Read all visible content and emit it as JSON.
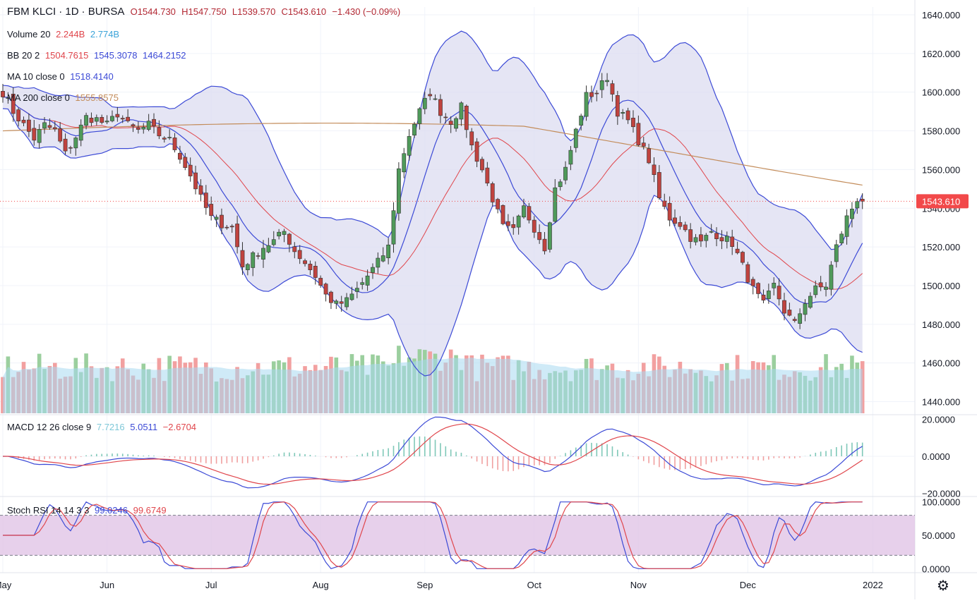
{
  "header": {
    "symbol": "FBM KLCI",
    "interval": "1D",
    "exchange": "BURSA",
    "open": "O1544.730",
    "high": "H1547.750",
    "low": "L1539.570",
    "close": "C1543.610",
    "change": "−1.430 (−0.09%)"
  },
  "legends": {
    "volume": {
      "label": "Volume 20",
      "v1": "2.244B",
      "v2": "2.774B"
    },
    "bb": {
      "label": "BB 20 2",
      "v1": "1504.7615",
      "v2": "1545.3078",
      "v3": "1464.2152"
    },
    "ma10": {
      "label": "MA 10 close 0",
      "v1": "1518.4140"
    },
    "ma200": {
      "label": "MA 200 close 0",
      "v1": "1555.8575"
    },
    "macd": {
      "label": "MACD 12 26 close 9",
      "v1": "7.7216",
      "v2": "5.0511",
      "v3": "−2.6704"
    },
    "stoch": {
      "label": "Stoch RSI 14 14 3 3",
      "v1": "99.0246",
      "v2": "99.6749"
    }
  },
  "colors": {
    "up": "#4f9a5a",
    "down": "#c0433f",
    "bb": "#3c4ad6",
    "bb_fill": "#dcdcf0",
    "ma10": "#e0464c",
    "ma200": "#c38c5a",
    "vol_up": "#9bcf9e",
    "vol_down": "#f2a0a0",
    "vol_ma": "#a8d8f0",
    "macd": "#3c4ad6",
    "signal": "#e0464c",
    "stoch_k": "#3c4ad6",
    "stoch_d": "#e0464c",
    "stoch_band": "#e1c4e6",
    "price_tag": "#f2494a"
  },
  "chart_data": {
    "type": "candlestick",
    "price_axis": {
      "ticks": [
        "1640.000",
        "1620.000",
        "1600.000",
        "1580.000",
        "1560.000",
        "1540.000",
        "1520.000",
        "1500.000",
        "1480.000",
        "1460.000",
        "1440.000"
      ],
      "range": [
        1434,
        1644
      ]
    },
    "last_price_label": "1543.610",
    "last_price": 1543.61,
    "macd_axis": {
      "ticks": [
        "20.0000",
        "0.0000",
        "−20.0000"
      ],
      "range": [
        -21,
        21
      ]
    },
    "stoch_axis": {
      "ticks": [
        "100.0000",
        "50.0000",
        "0.0000"
      ],
      "range": [
        -6,
        106
      ],
      "bands": [
        20,
        80
      ]
    },
    "time_axis": [
      {
        "label": "May",
        "x": 0
      },
      {
        "label": "Jun",
        "x": 20
      },
      {
        "label": "Jul",
        "x": 40
      },
      {
        "label": "Aug",
        "x": 61
      },
      {
        "label": "Sep",
        "x": 81
      },
      {
        "label": "Oct",
        "x": 102
      },
      {
        "label": "Nov",
        "x": 122
      },
      {
        "label": "Dec",
        "x": 143
      },
      {
        "label": "2022",
        "x": 167
      }
    ],
    "close_anchors": [
      [
        0,
        1600
      ],
      [
        2,
        1590
      ],
      [
        4,
        1583
      ],
      [
        6,
        1576
      ],
      [
        8,
        1583
      ],
      [
        10,
        1580
      ],
      [
        12,
        1568
      ],
      [
        14,
        1577
      ],
      [
        16,
        1587
      ],
      [
        18,
        1586
      ],
      [
        20,
        1583
      ],
      [
        22,
        1589
      ],
      [
        24,
        1583
      ],
      [
        26,
        1580
      ],
      [
        28,
        1583
      ],
      [
        30,
        1578
      ],
      [
        32,
        1575
      ],
      [
        34,
        1567
      ],
      [
        36,
        1557
      ],
      [
        38,
        1545
      ],
      [
        40,
        1535
      ],
      [
        42,
        1532
      ],
      [
        44,
        1530
      ],
      [
        46,
        1510
      ],
      [
        48,
        1515
      ],
      [
        50,
        1520
      ],
      [
        52,
        1523
      ],
      [
        54,
        1528
      ],
      [
        56,
        1518
      ],
      [
        58,
        1512
      ],
      [
        60,
        1505
      ],
      [
        62,
        1495
      ],
      [
        64,
        1490
      ],
      [
        66,
        1492
      ],
      [
        68,
        1498
      ],
      [
        70,
        1505
      ],
      [
        72,
        1512
      ],
      [
        74,
        1520
      ],
      [
        76,
        1560
      ],
      [
        78,
        1578
      ],
      [
        80,
        1590
      ],
      [
        82,
        1600
      ],
      [
        84,
        1590
      ],
      [
        86,
        1585
      ],
      [
        88,
        1592
      ],
      [
        90,
        1572
      ],
      [
        92,
        1560
      ],
      [
        94,
        1545
      ],
      [
        96,
        1530
      ],
      [
        98,
        1528
      ],
      [
        100,
        1540
      ],
      [
        102,
        1530
      ],
      [
        104,
        1520
      ],
      [
        106,
        1550
      ],
      [
        108,
        1560
      ],
      [
        110,
        1580
      ],
      [
        112,
        1598
      ],
      [
        114,
        1600
      ],
      [
        116,
        1608
      ],
      [
        118,
        1590
      ],
      [
        120,
        1585
      ],
      [
        122,
        1575
      ],
      [
        124,
        1565
      ],
      [
        126,
        1545
      ],
      [
        128,
        1535
      ],
      [
        130,
        1532
      ],
      [
        132,
        1525
      ],
      [
        134,
        1522
      ],
      [
        136,
        1528
      ],
      [
        138,
        1525
      ],
      [
        140,
        1522
      ],
      [
        142,
        1510
      ],
      [
        144,
        1498
      ],
      [
        146,
        1490
      ],
      [
        148,
        1500
      ],
      [
        150,
        1487
      ],
      [
        152,
        1480
      ],
      [
        154,
        1492
      ],
      [
        156,
        1498
      ],
      [
        158,
        1500
      ],
      [
        160,
        1520
      ],
      [
        162,
        1535
      ],
      [
        164,
        1545
      ],
      [
        165,
        1543.61
      ]
    ]
  }
}
